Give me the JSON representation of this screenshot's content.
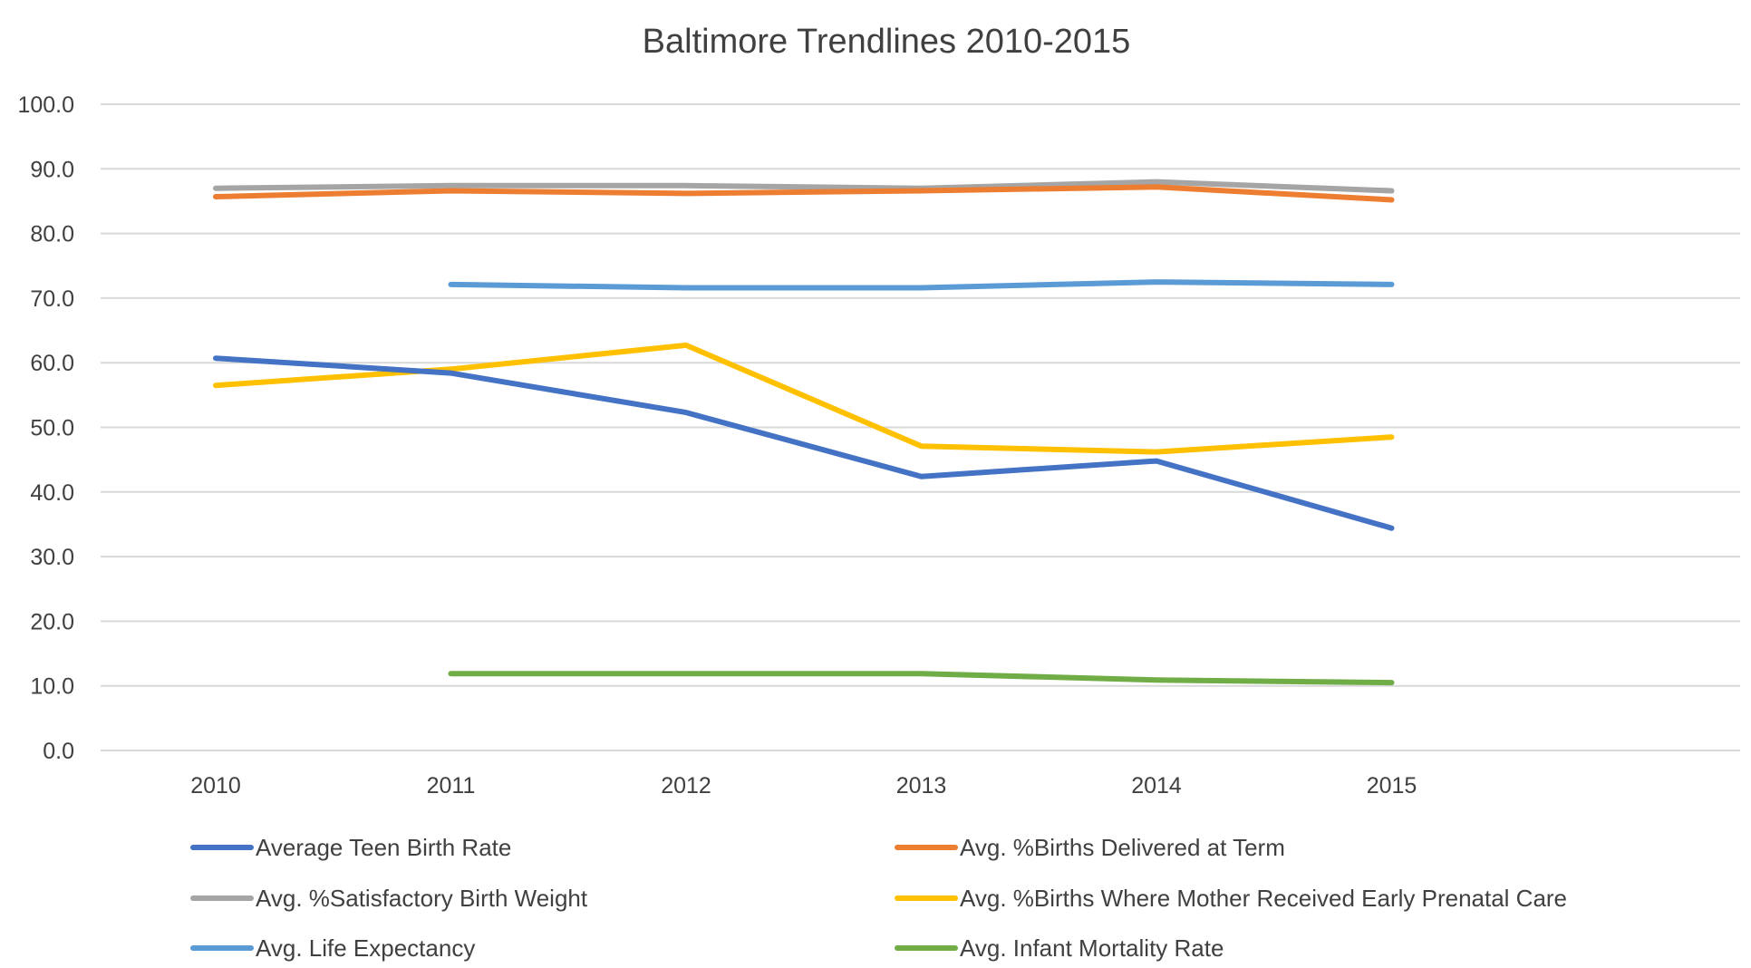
{
  "chart_data": {
    "type": "line",
    "title": "Baltimore Trendlines 2010-2015",
    "xlabel": "",
    "ylabel": "",
    "categories": [
      "2010",
      "2011",
      "2012",
      "2013",
      "2014",
      "2015"
    ],
    "ylim": [
      0,
      100
    ],
    "yticks": [
      "0.0",
      "10.0",
      "20.0",
      "30.0",
      "40.0",
      "50.0",
      "60.0",
      "70.0",
      "80.0",
      "90.0",
      "100.0"
    ],
    "grid": true,
    "legend_position": "bottom",
    "series": [
      {
        "name": "Average Teen Birth Rate",
        "color": "#4472C4",
        "values": [
          60.7,
          58.4,
          52.3,
          42.4,
          44.8,
          34.4
        ]
      },
      {
        "name": "Avg. %Births Delivered at Term",
        "color": "#ED7D31",
        "values": [
          85.7,
          86.6,
          86.2,
          86.6,
          87.2,
          85.2
        ]
      },
      {
        "name": "Avg. %Satisfactory Birth Weight",
        "color": "#A5A5A5",
        "values": [
          87.0,
          87.4,
          87.4,
          87.0,
          88.0,
          86.6
        ]
      },
      {
        "name": "Avg. %Births Where Mother Received Early Prenatal Care",
        "color": "#FFC000",
        "values": [
          56.5,
          59.0,
          62.7,
          47.1,
          46.2,
          48.5
        ]
      },
      {
        "name": "Avg. Life Expectancy",
        "color": "#5B9BD5",
        "values": [
          null,
          72.1,
          71.6,
          71.6,
          72.5,
          72.1
        ]
      },
      {
        "name": "Avg. Infant Mortality Rate",
        "color": "#70AD47",
        "values": [
          null,
          11.9,
          11.9,
          11.9,
          10.9,
          10.5
        ]
      }
    ]
  }
}
